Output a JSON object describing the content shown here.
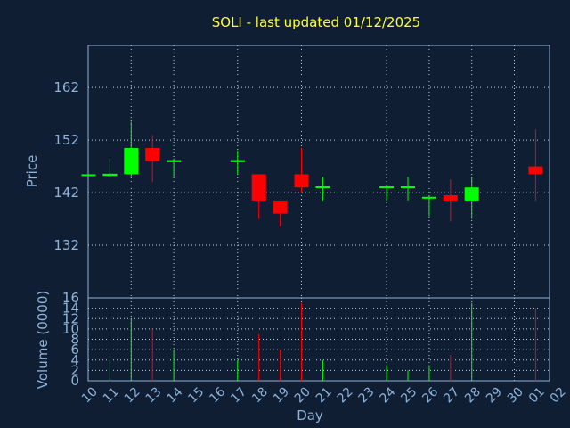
{
  "chart_data": {
    "type": "candlestick",
    "title": "SOLI - last updated 01/12/2025",
    "xlabel": "Day",
    "ylabel_price": "Price",
    "ylabel_volume": "Volume (0000)",
    "x_ticks": [
      "10",
      "11",
      "12",
      "13",
      "14",
      "15",
      "16",
      "17",
      "18",
      "19",
      "20",
      "21",
      "22",
      "23",
      "24",
      "25",
      "26",
      "27",
      "28",
      "29",
      "30",
      "01",
      "02"
    ],
    "price_ylim": [
      122,
      170
    ],
    "price_yticks": [
      132,
      142,
      152,
      162
    ],
    "volume_ylim": [
      0,
      16
    ],
    "volume_yticks": [
      0,
      2,
      4,
      6,
      8,
      10,
      12,
      14,
      16
    ],
    "grid": true,
    "up_color": "#00ff00",
    "down_color": "#ff0000",
    "candles": [
      {
        "day": "10",
        "open": 145.5,
        "high": 145.5,
        "low": 145.5,
        "close": 145.5,
        "volume": 0
      },
      {
        "day": "11",
        "open": 145.2,
        "high": 148.5,
        "low": 145,
        "close": 145.6,
        "volume": 4
      },
      {
        "day": "12",
        "open": 145.5,
        "high": 155.5,
        "low": 145,
        "close": 150.5,
        "volume": 12
      },
      {
        "day": "13",
        "open": 150.5,
        "high": 153,
        "low": 144,
        "close": 148,
        "volume": 10
      },
      {
        "day": "14",
        "open": 147.8,
        "high": 148.5,
        "low": 145,
        "close": 148.2,
        "volume": 6
      },
      {
        "day": "17",
        "open": 147.8,
        "high": 150,
        "low": 145.5,
        "close": 148.2,
        "volume": 4
      },
      {
        "day": "18",
        "open": 145.5,
        "high": 145.5,
        "low": 137,
        "close": 140.5,
        "volume": 9
      },
      {
        "day": "19",
        "open": 140.5,
        "high": 140.5,
        "low": 135.5,
        "close": 138,
        "volume": 6
      },
      {
        "day": "20",
        "open": 145.5,
        "high": 150.5,
        "low": 142,
        "close": 143,
        "volume": 15
      },
      {
        "day": "21",
        "open": 143,
        "high": 145,
        "low": 140.5,
        "close": 143.2,
        "volume": 4
      },
      {
        "day": "24",
        "open": 143,
        "high": 143.5,
        "low": 140.5,
        "close": 143.2,
        "volume": 3
      },
      {
        "day": "25",
        "open": 143,
        "high": 145,
        "low": 140.5,
        "close": 143.2,
        "volume": 2
      },
      {
        "day": "26",
        "open": 141,
        "high": 141.5,
        "low": 137.5,
        "close": 141.2,
        "volume": 3
      },
      {
        "day": "27",
        "open": 141.5,
        "high": 144.5,
        "low": 136.5,
        "close": 140.5,
        "volume": 5
      },
      {
        "day": "28",
        "open": 140.5,
        "high": 145,
        "low": 137,
        "close": 143,
        "volume": 15
      },
      {
        "day": "01",
        "open": 147,
        "high": 154,
        "low": 140.5,
        "close": 145.5,
        "volume": 14
      }
    ]
  }
}
